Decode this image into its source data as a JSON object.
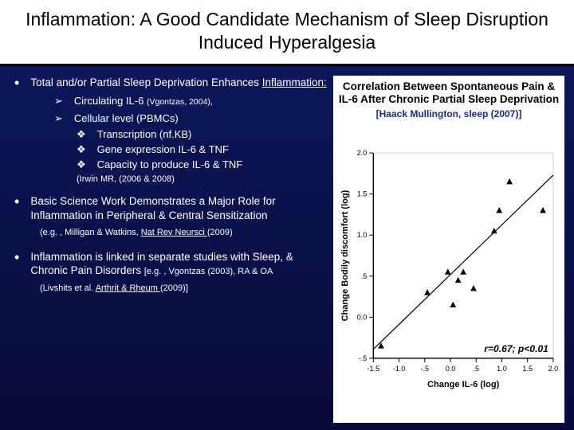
{
  "title": "Inflammation: A Good Candidate Mechanism of Sleep Disruption Induced Hyperalgesia",
  "bullets": {
    "b1": {
      "text": "Total and/or Partial Sleep Deprivation Enhances ",
      "underlined": "Inflammation:",
      "sub1": {
        "text": "Circulating IL-6 ",
        "ref": "(Vgontzas, 2004),"
      },
      "sub2": {
        "text": "Cellular level (PBMCs)",
        "d1": "Transcription (nf.KB)",
        "d2": "Gene expression IL-6 & TNF",
        "d3": "Capacity to produce IL-6 & TNF",
        "ref": "(Irwin MR, (2006 & 2008)"
      }
    },
    "b2": {
      "text": "Basic Science Work Demonstrates a Major Role for Inflammation in Peripheral & Central Sensitization",
      "ref_pre": "(e.g. , Milligan & Watkins, ",
      "ref_u": "Nat Rev Neursci ",
      "ref_post": "(2009)"
    },
    "b3": {
      "text": "Inflammation is linked in separate studies with Sleep, & Chronic Pain Disorders ",
      "tail": "[e.g. , Vgontzas (2003), RA & OA",
      "ref_pre": "(Livshits et al. ",
      "ref_u": "Arthrit & Rheum ",
      "ref_post": "(2009)]"
    }
  },
  "right": {
    "title": "Correlation Between Spontaneous Pain & IL-6 After Chronic Partial Sleep Deprivation",
    "sub": "[Haack Mullington, sleep (2007)]"
  },
  "chart": {
    "xlabel": "Change IL-6 (log)",
    "ylabel": "Change Bodily discomfort (log)",
    "xlim": [
      -1.5,
      2.0
    ],
    "ylim": [
      -0.5,
      2.0
    ],
    "xticks": [
      -1.5,
      -1.0,
      -0.5,
      0.0,
      0.5,
      1.0,
      1.5,
      2.0
    ],
    "yticks": [
      -0.5,
      0.0,
      0.5,
      1.0,
      1.5,
      2.0
    ],
    "xticklabels": [
      "-1.5",
      "-1.0",
      "-.5",
      "0.0",
      ".5",
      "1.0",
      "1.5",
      "2.0"
    ],
    "yticklabels": [
      "-.5",
      "0.0",
      ".5",
      "1.0",
      "1.5",
      "2.0"
    ],
    "label_fontsize": 11,
    "tick_fontsize": 9,
    "marker": "triangle",
    "marker_color": "#000000",
    "marker_size": 7,
    "line_color": "#000000",
    "line_width": 1.2,
    "axis_color": "#000000",
    "plot_border_color": "#d0d0d0",
    "background_color": "#ffffff",
    "annotation": "r=0.67; p<0.01",
    "annotation_fontsize": 12,
    "points": [
      [
        -1.35,
        -0.35
      ],
      [
        -0.45,
        0.3
      ],
      [
        -0.05,
        0.55
      ],
      [
        0.05,
        0.15
      ],
      [
        0.15,
        0.45
      ],
      [
        0.25,
        0.55
      ],
      [
        0.45,
        0.35
      ],
      [
        0.95,
        1.3
      ],
      [
        0.85,
        1.05
      ],
      [
        1.15,
        1.65
      ],
      [
        1.8,
        1.3
      ]
    ],
    "fit_line": {
      "x1": -1.5,
      "y1": -0.39,
      "x2": 2.0,
      "y2": 1.73
    }
  }
}
